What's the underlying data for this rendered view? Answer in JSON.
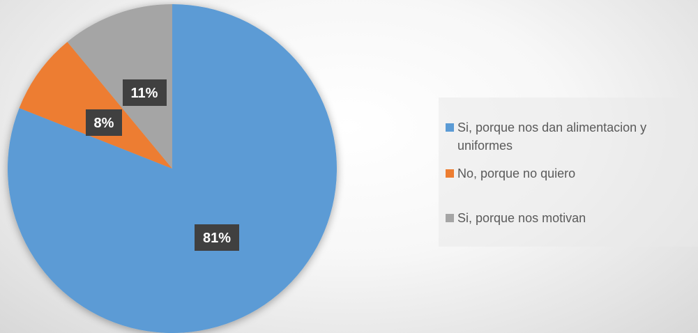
{
  "chart_data": {
    "type": "pie",
    "title": "",
    "slices": [
      {
        "label": "Si, porque nos dan alimentacion y uniformes",
        "value": 81,
        "display": "81%",
        "color": "#5B9BD5"
      },
      {
        "label": "No, porque no quiero",
        "value": 8,
        "display": "8%",
        "color": "#ED7D31"
      },
      {
        "label": "Si, porque nos motivan",
        "value": 11,
        "display": "11%",
        "color": "#A5A5A5"
      }
    ],
    "start_angle_deg": 0,
    "direction": "clockwise",
    "legend_position": "right",
    "data_labels": "inside, dark box"
  }
}
